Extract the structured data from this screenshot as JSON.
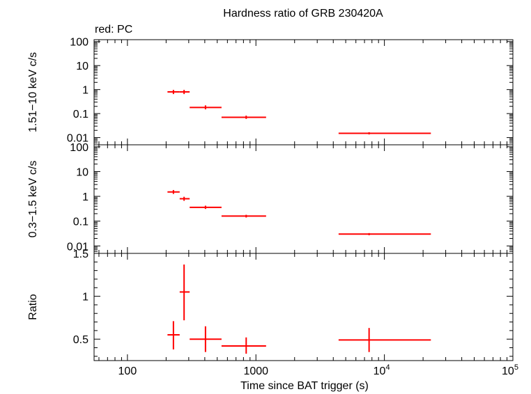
{
  "chart_data": [
    {
      "type": "scatter",
      "title": "Hardness ratio of GRB 230420A",
      "subtitle": "red: PC",
      "ylabel": "1.51−10 keV c/s",
      "yscale": "log",
      "xscale": "log",
      "ylim": [
        0.005,
        120
      ],
      "xlim": [
        55,
        100000
      ],
      "yticks": [
        {
          "v": 100,
          "label": "100"
        },
        {
          "v": 10,
          "label": "10"
        },
        {
          "v": 1,
          "label": "1"
        },
        {
          "v": 0.1,
          "label": "0.1"
        },
        {
          "v": 0.01,
          "label": "0.01"
        }
      ],
      "color": "#ff0000",
      "points": [
        {
          "x": 228,
          "xlo": 205,
          "xhi": 255,
          "y": 0.8,
          "ylo": 0.65,
          "yhi": 0.97
        },
        {
          "x": 276,
          "xlo": 255,
          "xhi": 305,
          "y": 0.8,
          "ylo": 0.65,
          "yhi": 0.97
        },
        {
          "x": 405,
          "xlo": 305,
          "xhi": 540,
          "y": 0.18,
          "ylo": 0.15,
          "yhi": 0.22
        },
        {
          "x": 840,
          "xlo": 540,
          "xhi": 1200,
          "y": 0.07,
          "ylo": 0.06,
          "yhi": 0.082
        },
        {
          "x": 7600,
          "xlo": 4400,
          "xhi": 23000,
          "y": 0.015,
          "ylo": 0.0135,
          "yhi": 0.0167
        }
      ]
    },
    {
      "type": "scatter",
      "ylabel": "0.3−1.5 keV c/s",
      "yscale": "log",
      "xscale": "log",
      "ylim": [
        0.005,
        120
      ],
      "xlim": [
        55,
        100000
      ],
      "yticks": [
        {
          "v": 100,
          "label": "100"
        },
        {
          "v": 10,
          "label": "10"
        },
        {
          "v": 1,
          "label": "1"
        },
        {
          "v": 0.1,
          "label": "0.1"
        },
        {
          "v": 0.01,
          "label": "0.01"
        }
      ],
      "color": "#ff0000",
      "points": [
        {
          "x": 228,
          "xlo": 205,
          "xhi": 255,
          "y": 1.5,
          "ylo": 1.25,
          "yhi": 1.8
        },
        {
          "x": 276,
          "xlo": 255,
          "xhi": 305,
          "y": 0.8,
          "ylo": 0.66,
          "yhi": 0.96
        },
        {
          "x": 405,
          "xlo": 305,
          "xhi": 540,
          "y": 0.36,
          "ylo": 0.31,
          "yhi": 0.42
        },
        {
          "x": 840,
          "xlo": 540,
          "xhi": 1200,
          "y": 0.16,
          "ylo": 0.14,
          "yhi": 0.18
        },
        {
          "x": 7600,
          "xlo": 4400,
          "xhi": 23000,
          "y": 0.03,
          "ylo": 0.027,
          "yhi": 0.033
        }
      ]
    },
    {
      "type": "scatter",
      "ylabel": "Ratio",
      "xlabel": "Time since BAT trigger (s)",
      "yscale": "linear",
      "xscale": "log",
      "ylim": [
        0.25,
        1.5
      ],
      "xlim": [
        55,
        100000
      ],
      "yticks": [
        {
          "v": 1.5,
          "label": "1.5"
        },
        {
          "v": 1,
          "label": "1"
        },
        {
          "v": 0.5,
          "label": "0.5"
        }
      ],
      "xticks": [
        {
          "v": 100,
          "label": "100"
        },
        {
          "v": 1000,
          "label": "1000"
        },
        {
          "v": 10000,
          "label": "10",
          "sup": "4"
        },
        {
          "v": 100000,
          "label": "10",
          "sup": "5"
        }
      ],
      "color": "#ff0000",
      "points": [
        {
          "x": 228,
          "xlo": 205,
          "xhi": 255,
          "y": 0.55,
          "ylo": 0.38,
          "yhi": 0.71
        },
        {
          "x": 276,
          "xlo": 255,
          "xhi": 305,
          "y": 1.05,
          "ylo": 0.72,
          "yhi": 1.37
        },
        {
          "x": 405,
          "xlo": 305,
          "xhi": 540,
          "y": 0.5,
          "ylo": 0.35,
          "yhi": 0.65
        },
        {
          "x": 840,
          "xlo": 540,
          "xhi": 1200,
          "y": 0.42,
          "ylo": 0.33,
          "yhi": 0.52
        },
        {
          "x": 7600,
          "xlo": 4400,
          "xhi": 23000,
          "y": 0.49,
          "ylo": 0.35,
          "yhi": 0.63
        }
      ]
    }
  ]
}
